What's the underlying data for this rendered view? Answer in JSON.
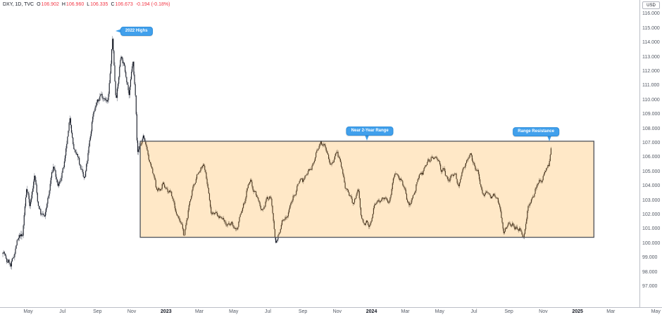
{
  "header": {
    "symbol": "DXY, 1D, TVC",
    "ohlc": [
      {
        "k": "O",
        "v": "106.902"
      },
      {
        "k": "H",
        "v": "106.960"
      },
      {
        "k": "L",
        "v": "106.335"
      },
      {
        "k": "C",
        "v": "106.673"
      }
    ],
    "change": "-0.194 (-0.18%)"
  },
  "price_axis": {
    "unit_button": "USD",
    "ticks": [
      "116.000",
      "115.000",
      "114.000",
      "113.000",
      "112.000",
      "111.000",
      "110.000",
      "109.000",
      "108.000",
      "107.000",
      "106.000",
      "105.000",
      "104.000",
      "103.000",
      "102.000",
      "101.000",
      "100.000",
      "99.000",
      "98.000",
      "97.000"
    ]
  },
  "time_axis": {
    "ticks": [
      {
        "label": "May",
        "date": "2022-05-01",
        "major": false
      },
      {
        "label": "Jul",
        "date": "2022-07-01",
        "major": false
      },
      {
        "label": "Sep",
        "date": "2022-09-01",
        "major": false
      },
      {
        "label": "Nov",
        "date": "2022-11-01",
        "major": false
      },
      {
        "label": "2023",
        "date": "2023-01-01",
        "major": true
      },
      {
        "label": "Mar",
        "date": "2023-03-01",
        "major": false
      },
      {
        "label": "May",
        "date": "2023-05-01",
        "major": false
      },
      {
        "label": "Jul",
        "date": "2023-07-01",
        "major": false
      },
      {
        "label": "Sep",
        "date": "2023-09-01",
        "major": false
      },
      {
        "label": "Nov",
        "date": "2023-11-01",
        "major": false
      },
      {
        "label": "2024",
        "date": "2024-01-01",
        "major": true
      },
      {
        "label": "Mar",
        "date": "2024-03-01",
        "major": false
      },
      {
        "label": "May",
        "date": "2024-05-01",
        "major": false
      },
      {
        "label": "Jul",
        "date": "2024-07-01",
        "major": false
      },
      {
        "label": "Sep",
        "date": "2024-09-01",
        "major": false
      },
      {
        "label": "Nov",
        "date": "2024-11-01",
        "major": false
      },
      {
        "label": "2025",
        "date": "2025-01-01",
        "major": true
      },
      {
        "label": "Mar",
        "date": "2025-03-01",
        "major": false
      },
      {
        "label": "May",
        "date": "2025-05-20",
        "major": false
      }
    ]
  },
  "chart_data": {
    "type": "candlestick",
    "symbol": "DXY",
    "timeframe": "1D",
    "title": "US Dollar Index daily candles, Mar 2022 - Nov 2024",
    "y_range": [
      96.3,
      116.6
    ],
    "x_range": [
      "2022-03-17",
      "2025-05-20"
    ],
    "grid": "off",
    "last_close": 106.673,
    "anchors": [
      [
        "2022-03-17",
        99.3
      ],
      [
        "2022-03-24",
        98.9
      ],
      [
        "2022-03-31",
        98.5
      ],
      [
        "2022-04-06",
        99.6
      ],
      [
        "2022-04-12",
        100.3
      ],
      [
        "2022-04-21",
        100.6
      ],
      [
        "2022-04-28",
        103.6
      ],
      [
        "2022-05-04",
        102.6
      ],
      [
        "2022-05-12",
        104.8
      ],
      [
        "2022-05-19",
        102.9
      ],
      [
        "2022-05-30",
        101.7
      ],
      [
        "2022-06-10",
        104.2
      ],
      [
        "2022-06-15",
        105.2
      ],
      [
        "2022-06-24",
        104.1
      ],
      [
        "2022-07-01",
        105.1
      ],
      [
        "2022-07-08",
        107.0
      ],
      [
        "2022-07-14",
        108.6
      ],
      [
        "2022-07-21",
        106.5
      ],
      [
        "2022-08-01",
        105.4
      ],
      [
        "2022-08-10",
        104.7
      ],
      [
        "2022-08-23",
        108.9
      ],
      [
        "2022-09-01",
        109.7
      ],
      [
        "2022-09-06",
        110.3
      ],
      [
        "2022-09-13",
        109.9
      ],
      [
        "2022-09-20",
        110.2
      ],
      [
        "2022-09-28",
        114.4
      ],
      [
        "2022-10-04",
        110.2
      ],
      [
        "2022-10-13",
        112.9
      ],
      [
        "2022-10-21",
        111.9
      ],
      [
        "2022-10-27",
        110.1
      ],
      [
        "2022-11-03",
        113.0
      ],
      [
        "2022-11-08",
        110.3
      ],
      [
        "2022-11-11",
        106.4
      ],
      [
        "2022-11-21",
        107.6
      ],
      [
        "2022-11-30",
        105.9
      ],
      [
        "2022-12-07",
        105.1
      ],
      [
        "2022-12-14",
        103.9
      ],
      [
        "2022-12-27",
        104.2
      ],
      [
        "2023-01-06",
        103.7
      ],
      [
        "2023-01-18",
        102.2
      ],
      [
        "2023-02-02",
        100.9
      ],
      [
        "2023-02-17",
        103.9
      ],
      [
        "2023-02-27",
        104.6
      ],
      [
        "2023-03-08",
        105.6
      ],
      [
        "2023-03-16",
        104.1
      ],
      [
        "2023-03-23",
        102.3
      ],
      [
        "2023-04-03",
        102.0
      ],
      [
        "2023-04-14",
        101.3
      ],
      [
        "2023-04-26",
        101.4
      ],
      [
        "2023-05-08",
        101.3
      ],
      [
        "2023-05-31",
        104.3
      ],
      [
        "2023-06-12",
        103.3
      ],
      [
        "2023-06-22",
        102.4
      ],
      [
        "2023-06-30",
        103.1
      ],
      [
        "2023-07-06",
        103.2
      ],
      [
        "2023-07-14",
        99.9
      ],
      [
        "2023-07-27",
        101.7
      ],
      [
        "2023-08-10",
        102.6
      ],
      [
        "2023-08-25",
        104.1
      ],
      [
        "2023-09-06",
        104.9
      ],
      [
        "2023-09-14",
        105.4
      ],
      [
        "2023-09-26",
        106.2
      ],
      [
        "2023-10-03",
        107.0
      ],
      [
        "2023-10-12",
        106.5
      ],
      [
        "2023-10-23",
        105.6
      ],
      [
        "2023-11-01",
        106.7
      ],
      [
        "2023-11-14",
        104.0
      ],
      [
        "2023-11-28",
        102.8
      ],
      [
        "2023-12-08",
        104.0
      ],
      [
        "2023-12-14",
        101.9
      ],
      [
        "2023-12-28",
        100.9
      ],
      [
        "2024-01-05",
        102.4
      ],
      [
        "2024-01-17",
        103.4
      ],
      [
        "2024-02-02",
        103.0
      ],
      [
        "2024-02-13",
        104.9
      ],
      [
        "2024-03-01",
        103.9
      ],
      [
        "2024-03-08",
        102.7
      ],
      [
        "2024-03-21",
        104.0
      ],
      [
        "2024-04-01",
        105.0
      ],
      [
        "2024-04-16",
        106.3
      ],
      [
        "2024-04-30",
        105.8
      ],
      [
        "2024-05-03",
        105.1
      ],
      [
        "2024-05-15",
        104.4
      ],
      [
        "2024-05-29",
        105.1
      ],
      [
        "2024-06-04",
        104.1
      ],
      [
        "2024-06-14",
        105.5
      ],
      [
        "2024-06-26",
        106.0
      ],
      [
        "2024-07-08",
        105.0
      ],
      [
        "2024-07-17",
        103.7
      ],
      [
        "2024-08-02",
        103.2
      ],
      [
        "2024-08-15",
        102.9
      ],
      [
        "2024-08-23",
        100.7
      ],
      [
        "2024-08-30",
        101.7
      ],
      [
        "2024-09-06",
        101.2
      ],
      [
        "2024-09-17",
        100.9
      ],
      [
        "2024-09-27",
        100.4
      ],
      [
        "2024-10-04",
        102.5
      ],
      [
        "2024-10-17",
        103.8
      ],
      [
        "2024-10-29",
        104.3
      ],
      [
        "2024-11-06",
        105.1
      ],
      [
        "2024-11-11",
        105.5
      ],
      [
        "2024-11-15",
        106.8
      ]
    ]
  },
  "drawings": {
    "range_box": {
      "start": "2022-11-16",
      "end": "2025-01-30",
      "top": 107.15,
      "bottom": 100.45
    },
    "callouts": [
      {
        "text": "2022 Highs",
        "date": "2022-09-28",
        "price": 114.8,
        "placement": "right",
        "dx": 0
      },
      {
        "text": "Near 2-Year Range",
        "date": "2023-12-24",
        "price": 107.15,
        "placement": "above",
        "dx": 4
      },
      {
        "text": "Range Resistance",
        "date": "2024-11-12",
        "price": 107.1,
        "placement": "above",
        "dx": -19
      }
    ]
  },
  "colors": {
    "accent_blue": "#41A0EC",
    "negative_red": "#F23645",
    "box_fill_rgba": "rgba(255,152,0,0.22)",
    "box_border": "#4F5258",
    "candle_body": "#1E222D",
    "candle_wick": "#8B8F98",
    "axis_text": "#555B66",
    "axis_line": "#BCBFC7",
    "text_dark": "#131722"
  }
}
